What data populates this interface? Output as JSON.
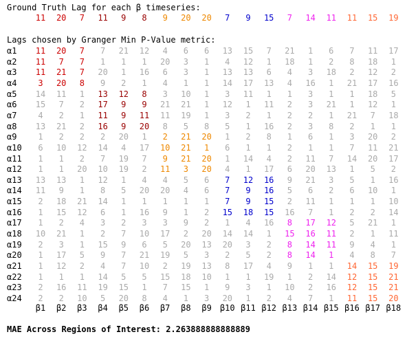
{
  "chart_data": {
    "type": "table",
    "title": "Ground Truth Lag for each β timeseries:",
    "ground_truth": [
      11,
      20,
      7,
      11,
      9,
      8,
      9,
      20,
      20,
      7,
      9,
      15,
      7,
      14,
      11,
      11,
      15,
      19
    ],
    "ground_truth_colors": [
      "#cc0000",
      "#cc0000",
      "#cc0000",
      "#990000",
      "#990000",
      "#990000",
      "#ee8800",
      "#ee8800",
      "#ee8800",
      "#0000cc",
      "#0000cc",
      "#0000cc",
      "#ee22ee",
      "#ee22ee",
      "#ee22ee",
      "#ff6633",
      "#ff6633",
      "#ff6633"
    ],
    "subtitle": "Lags chosen by Granger Min P-Value metric:",
    "row_labels": [
      "α1",
      "α2",
      "α3",
      "α4",
      "α5",
      "α6",
      "α7",
      "α8",
      "α9",
      "α10",
      "α11",
      "α12",
      "α13",
      "α14",
      "α15",
      "α16",
      "α17",
      "α18",
      "α19",
      "α20",
      "α21",
      "α22",
      "α23",
      "α24"
    ],
    "col_labels": [
      "β1",
      "β2",
      "β3",
      "β4",
      "β5",
      "β6",
      "β7",
      "β8",
      "β9",
      "β10",
      "β11",
      "β12",
      "β13",
      "β14",
      "β15",
      "β16",
      "β17",
      "β18"
    ],
    "matrix": [
      [
        11,
        20,
        7,
        7,
        21,
        12,
        4,
        6,
        6,
        13,
        15,
        7,
        21,
        1,
        6,
        7,
        11,
        17
      ],
      [
        11,
        7,
        7,
        1,
        1,
        1,
        20,
        3,
        1,
        4,
        12,
        1,
        18,
        1,
        2,
        8,
        18,
        1
      ],
      [
        11,
        21,
        7,
        20,
        1,
        16,
        6,
        3,
        1,
        13,
        13,
        6,
        4,
        3,
        18,
        2,
        12,
        2
      ],
      [
        3,
        20,
        8,
        9,
        2,
        1,
        4,
        1,
        1,
        14,
        17,
        13,
        4,
        16,
        1,
        21,
        17,
        16
      ],
      [
        14,
        11,
        1,
        13,
        12,
        8,
        3,
        10,
        1,
        3,
        11,
        1,
        1,
        3,
        1,
        1,
        18,
        5
      ],
      [
        15,
        7,
        2,
        17,
        9,
        9,
        21,
        21,
        1,
        12,
        1,
        11,
        2,
        3,
        21,
        1,
        12,
        1
      ],
      [
        4,
        2,
        1,
        11,
        9,
        11,
        11,
        19,
        1,
        3,
        2,
        1,
        2,
        2,
        1,
        21,
        7,
        18
      ],
      [
        13,
        21,
        2,
        16,
        9,
        20,
        8,
        5,
        8,
        5,
        1,
        16,
        2,
        3,
        8,
        2,
        1,
        1
      ],
      [
        1,
        2,
        2,
        2,
        20,
        1,
        2,
        21,
        20,
        1,
        2,
        8,
        1,
        6,
        1,
        3,
        20,
        2
      ],
      [
        6,
        10,
        12,
        14,
        4,
        17,
        10,
        21,
        1,
        6,
        1,
        1,
        2,
        1,
        1,
        7,
        11,
        21
      ],
      [
        1,
        1,
        2,
        7,
        19,
        7,
        9,
        21,
        20,
        1,
        14,
        4,
        2,
        11,
        7,
        14,
        20,
        17
      ],
      [
        1,
        1,
        20,
        10,
        19,
        2,
        11,
        3,
        20,
        4,
        1,
        17,
        6,
        20,
        13,
        1,
        5,
        2
      ],
      [
        13,
        13,
        1,
        12,
        1,
        4,
        4,
        5,
        6,
        7,
        12,
        16,
        9,
        21,
        3,
        5,
        1,
        16
      ],
      [
        11,
        9,
        1,
        8,
        5,
        20,
        20,
        4,
        6,
        7,
        9,
        16,
        5,
        6,
        2,
        6,
        10,
        1
      ],
      [
        2,
        18,
        21,
        14,
        1,
        1,
        1,
        1,
        1,
        7,
        9,
        15,
        2,
        11,
        1,
        1,
        1,
        10
      ],
      [
        1,
        15,
        12,
        6,
        1,
        16,
        9,
        1,
        2,
        15,
        18,
        15,
        16,
        7,
        1,
        2,
        2,
        14
      ],
      [
        1,
        2,
        4,
        3,
        2,
        3,
        3,
        9,
        2,
        1,
        4,
        16,
        8,
        17,
        12,
        5,
        21,
        1
      ],
      [
        10,
        21,
        1,
        2,
        7,
        10,
        17,
        2,
        20,
        14,
        14,
        1,
        15,
        16,
        11,
        2,
        1,
        11
      ],
      [
        2,
        3,
        1,
        15,
        9,
        6,
        5,
        20,
        13,
        20,
        3,
        2,
        8,
        14,
        11,
        9,
        4,
        1
      ],
      [
        1,
        17,
        5,
        9,
        7,
        21,
        19,
        5,
        3,
        2,
        5,
        2,
        8,
        14,
        1,
        4,
        8,
        7
      ],
      [
        1,
        12,
        2,
        4,
        7,
        10,
        2,
        19,
        13,
        8,
        17,
        4,
        9,
        1,
        1,
        14,
        15,
        19
      ],
      [
        1,
        1,
        1,
        14,
        5,
        5,
        15,
        18,
        10,
        1,
        1,
        19,
        1,
        2,
        14,
        12,
        15,
        21
      ],
      [
        2,
        16,
        11,
        19,
        15,
        1,
        7,
        15,
        1,
        9,
        3,
        1,
        10,
        2,
        16,
        12,
        15,
        21
      ],
      [
        2,
        2,
        10,
        5,
        20,
        8,
        4,
        1,
        3,
        20,
        1,
        2,
        4,
        7,
        1,
        11,
        15,
        20
      ]
    ],
    "highlight_groups": [
      {
        "rows": [
          0,
          1,
          2,
          3
        ],
        "cols": [
          0,
          1,
          2
        ],
        "color": "#cc0000"
      },
      {
        "rows": [
          4,
          5,
          6,
          7
        ],
        "cols": [
          3,
          4,
          5
        ],
        "color": "#990000"
      },
      {
        "rows": [
          8,
          9,
          10,
          11
        ],
        "cols": [
          6,
          7,
          8
        ],
        "color": "#ee8800"
      },
      {
        "rows": [
          12,
          13,
          14,
          15
        ],
        "cols": [
          9,
          10,
          11
        ],
        "color": "#0000cc"
      },
      {
        "rows": [
          16,
          17,
          18,
          19
        ],
        "cols": [
          12,
          13,
          14
        ],
        "color": "#ee22ee"
      },
      {
        "rows": [
          20,
          21,
          22,
          23
        ],
        "cols": [
          15,
          16,
          17
        ],
        "color": "#ff6633"
      }
    ],
    "default_color": "#aaaaaa",
    "footer": "MAE Across Regions of Interest: 2.263888888888889"
  }
}
